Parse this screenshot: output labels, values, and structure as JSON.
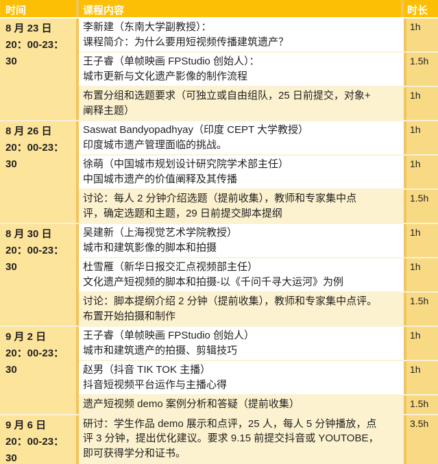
{
  "header": {
    "time": "时间",
    "content": "课程内容",
    "duration": "时长"
  },
  "colors": {
    "header_bg": "#fcbf06",
    "header_text": "#ffffff",
    "time_column_bg": "#fde49b",
    "duration_column_bg": "#f9da84",
    "row_white": "#ffffff",
    "row_highlight": "#fdf2cf",
    "border_vertical": "#f1c55d",
    "border_horizontal": "#fbf2d6",
    "text": "#1f1f1f"
  },
  "groups": [
    {
      "date": "8 月 23 日",
      "time": "20：00-23：30",
      "sessions": [
        {
          "lines": [
            "李新建（东南大学副教授）：",
            "课程简介：为什么要用短视频传播建筑遗产？"
          ],
          "duration": "1h",
          "highlight": false
        },
        {
          "lines": [
            "王子睿（单帧映画 FPStudio 创始人）：",
            "城市更新与文化遗产影像的制作流程"
          ],
          "duration": "1.5h",
          "highlight": false
        },
        {
          "lines": [
            "布置分组和选题要求（可独立或自由组队，25 日前提交，对象+",
            "阐释主题）"
          ],
          "duration": "1h",
          "highlight": true
        }
      ]
    },
    {
      "date": "8 月 26 日",
      "time": "20：00-23：30",
      "sessions": [
        {
          "lines": [
            "Saswat Bandyopadhyay（印度 CEPT 大学教授）",
            "印度城市遗产管理面临的挑战。"
          ],
          "duration": "1h",
          "highlight": false
        },
        {
          "lines": [
            "徐萌（中国城市规划设计研究院学术部主任）",
            "中国城市遗产的价值阐释及其传播"
          ],
          "duration": "1h",
          "highlight": false
        },
        {
          "lines": [
            "讨论：每人 2 分钟介绍选题（提前收集），教师和专家集中点",
            "评，确定选题和主题，29 日前提交脚本提纲"
          ],
          "duration": "1.5h",
          "highlight": true
        }
      ]
    },
    {
      "date": "8 月 30 日",
      "time": "20：00-23：30",
      "sessions": [
        {
          "lines": [
            "吴建新（上海视觉艺术学院教授）",
            "城市和建筑影像的脚本和拍摄"
          ],
          "duration": "1h",
          "highlight": false
        },
        {
          "lines": [
            "杜雪雁（新华日报交汇点视频部主任）",
            "文化遗产短视频的脚本和拍摄-以《千问千寻大运河》为例"
          ],
          "duration": "1h",
          "highlight": false
        },
        {
          "lines": [
            "讨论：脚本提纲介绍 2 分钟（提前收集），教师和专家集中点评。",
            "布置开始拍摄和制作"
          ],
          "duration": "1.5h",
          "highlight": true
        }
      ]
    },
    {
      "date": "9 月 2 日",
      "time": "20：00-23：30",
      "sessions": [
        {
          "lines": [
            "王子睿（单帧映画 FPStudio 创始人）",
            "城市和建筑遗产的拍摄、剪辑技巧"
          ],
          "duration": "1h",
          "highlight": false
        },
        {
          "lines": [
            "赵男（抖音 TIK TOK 主播）",
            "抖音短视频平台运作与主播心得"
          ],
          "duration": "1h",
          "highlight": false
        },
        {
          "lines": [
            "遗产短视频 demo 案例分析和答疑（提前收集）"
          ],
          "duration": "1.5h",
          "highlight": true
        }
      ]
    },
    {
      "date": "9 月 6 日",
      "time": "20：00-23：30",
      "sessions": [
        {
          "lines": [
            "研讨：学生作品 demo 展示和点评，25 人，每人 5 分钟播放，点",
            "评 3 分钟，提出优化建议。要求 9.15 前提交抖音或 YOUTOBE，",
            "即可获得学分和证书。"
          ],
          "duration": "3.5h",
          "highlight": true
        }
      ]
    }
  ]
}
